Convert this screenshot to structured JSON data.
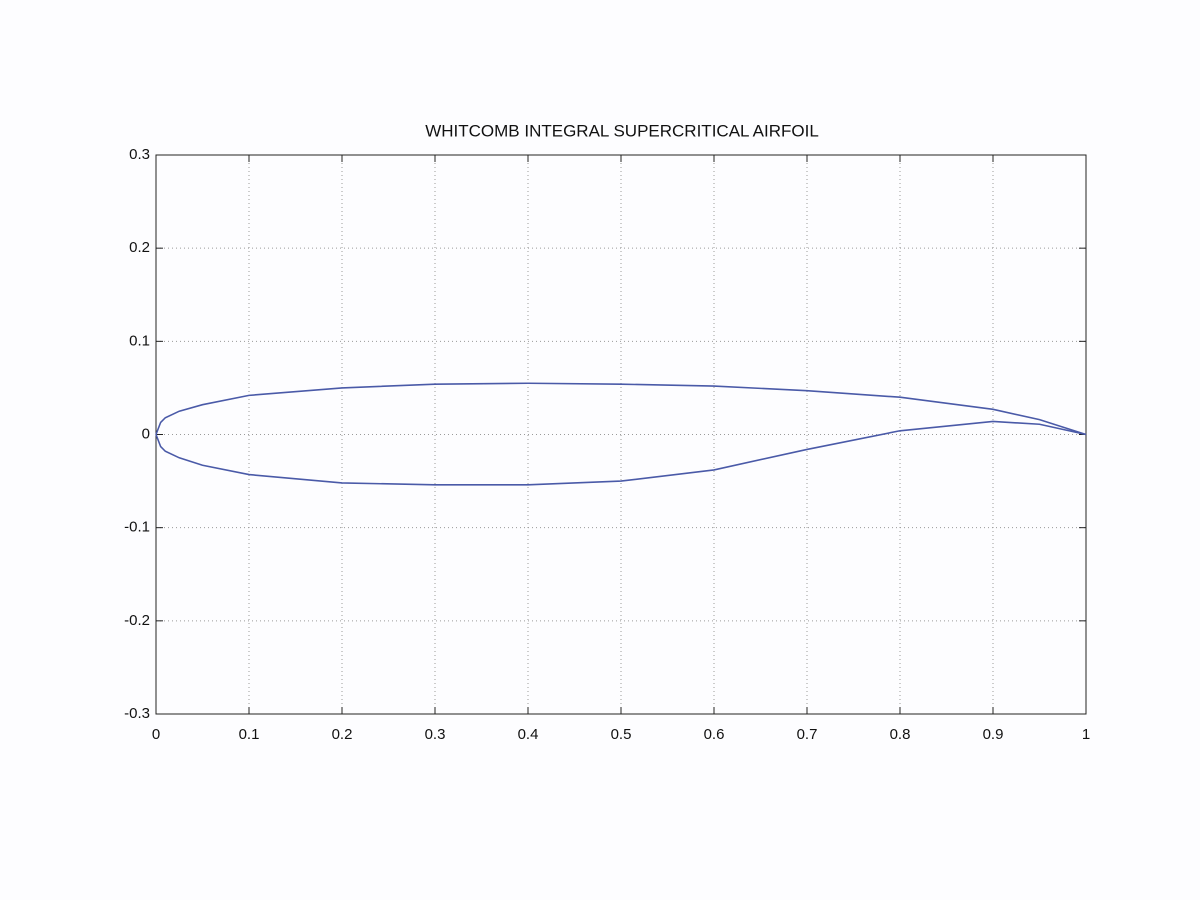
{
  "chart_data": {
    "type": "line",
    "title": "WHITCOMB INTEGRAL SUPERCRITICAL AIRFOIL",
    "x": [
      0,
      0.005,
      0.01,
      0.025,
      0.05,
      0.1,
      0.2,
      0.3,
      0.4,
      0.5,
      0.6,
      0.7,
      0.8,
      0.9,
      0.95,
      1
    ],
    "series": [
      {
        "color": "#4a5aa8",
        "values": [
          0,
          0.013,
          0.018,
          0.025,
          0.032,
          0.042,
          0.05,
          0.054,
          0.055,
          0.054,
          0.052,
          0.047,
          0.04,
          0.027,
          0.016,
          0
        ]
      },
      {
        "color": "#4a5aa8",
        "values": [
          0,
          -0.013,
          -0.018,
          -0.025,
          -0.033,
          -0.043,
          -0.052,
          -0.054,
          -0.054,
          -0.05,
          -0.038,
          -0.016,
          0.004,
          0.014,
          0.011,
          0
        ]
      }
    ],
    "xlim": [
      0,
      1
    ],
    "xticks": [
      0,
      0.1,
      0.2,
      0.3,
      0.4,
      0.5,
      0.6,
      0.7,
      0.8,
      0.9,
      1
    ],
    "ylim": [
      -0.3,
      0.3
    ],
    "yticks": [
      -0.3,
      -0.2,
      -0.1,
      0,
      0.1,
      0.2,
      0.3
    ],
    "grid": true
  }
}
